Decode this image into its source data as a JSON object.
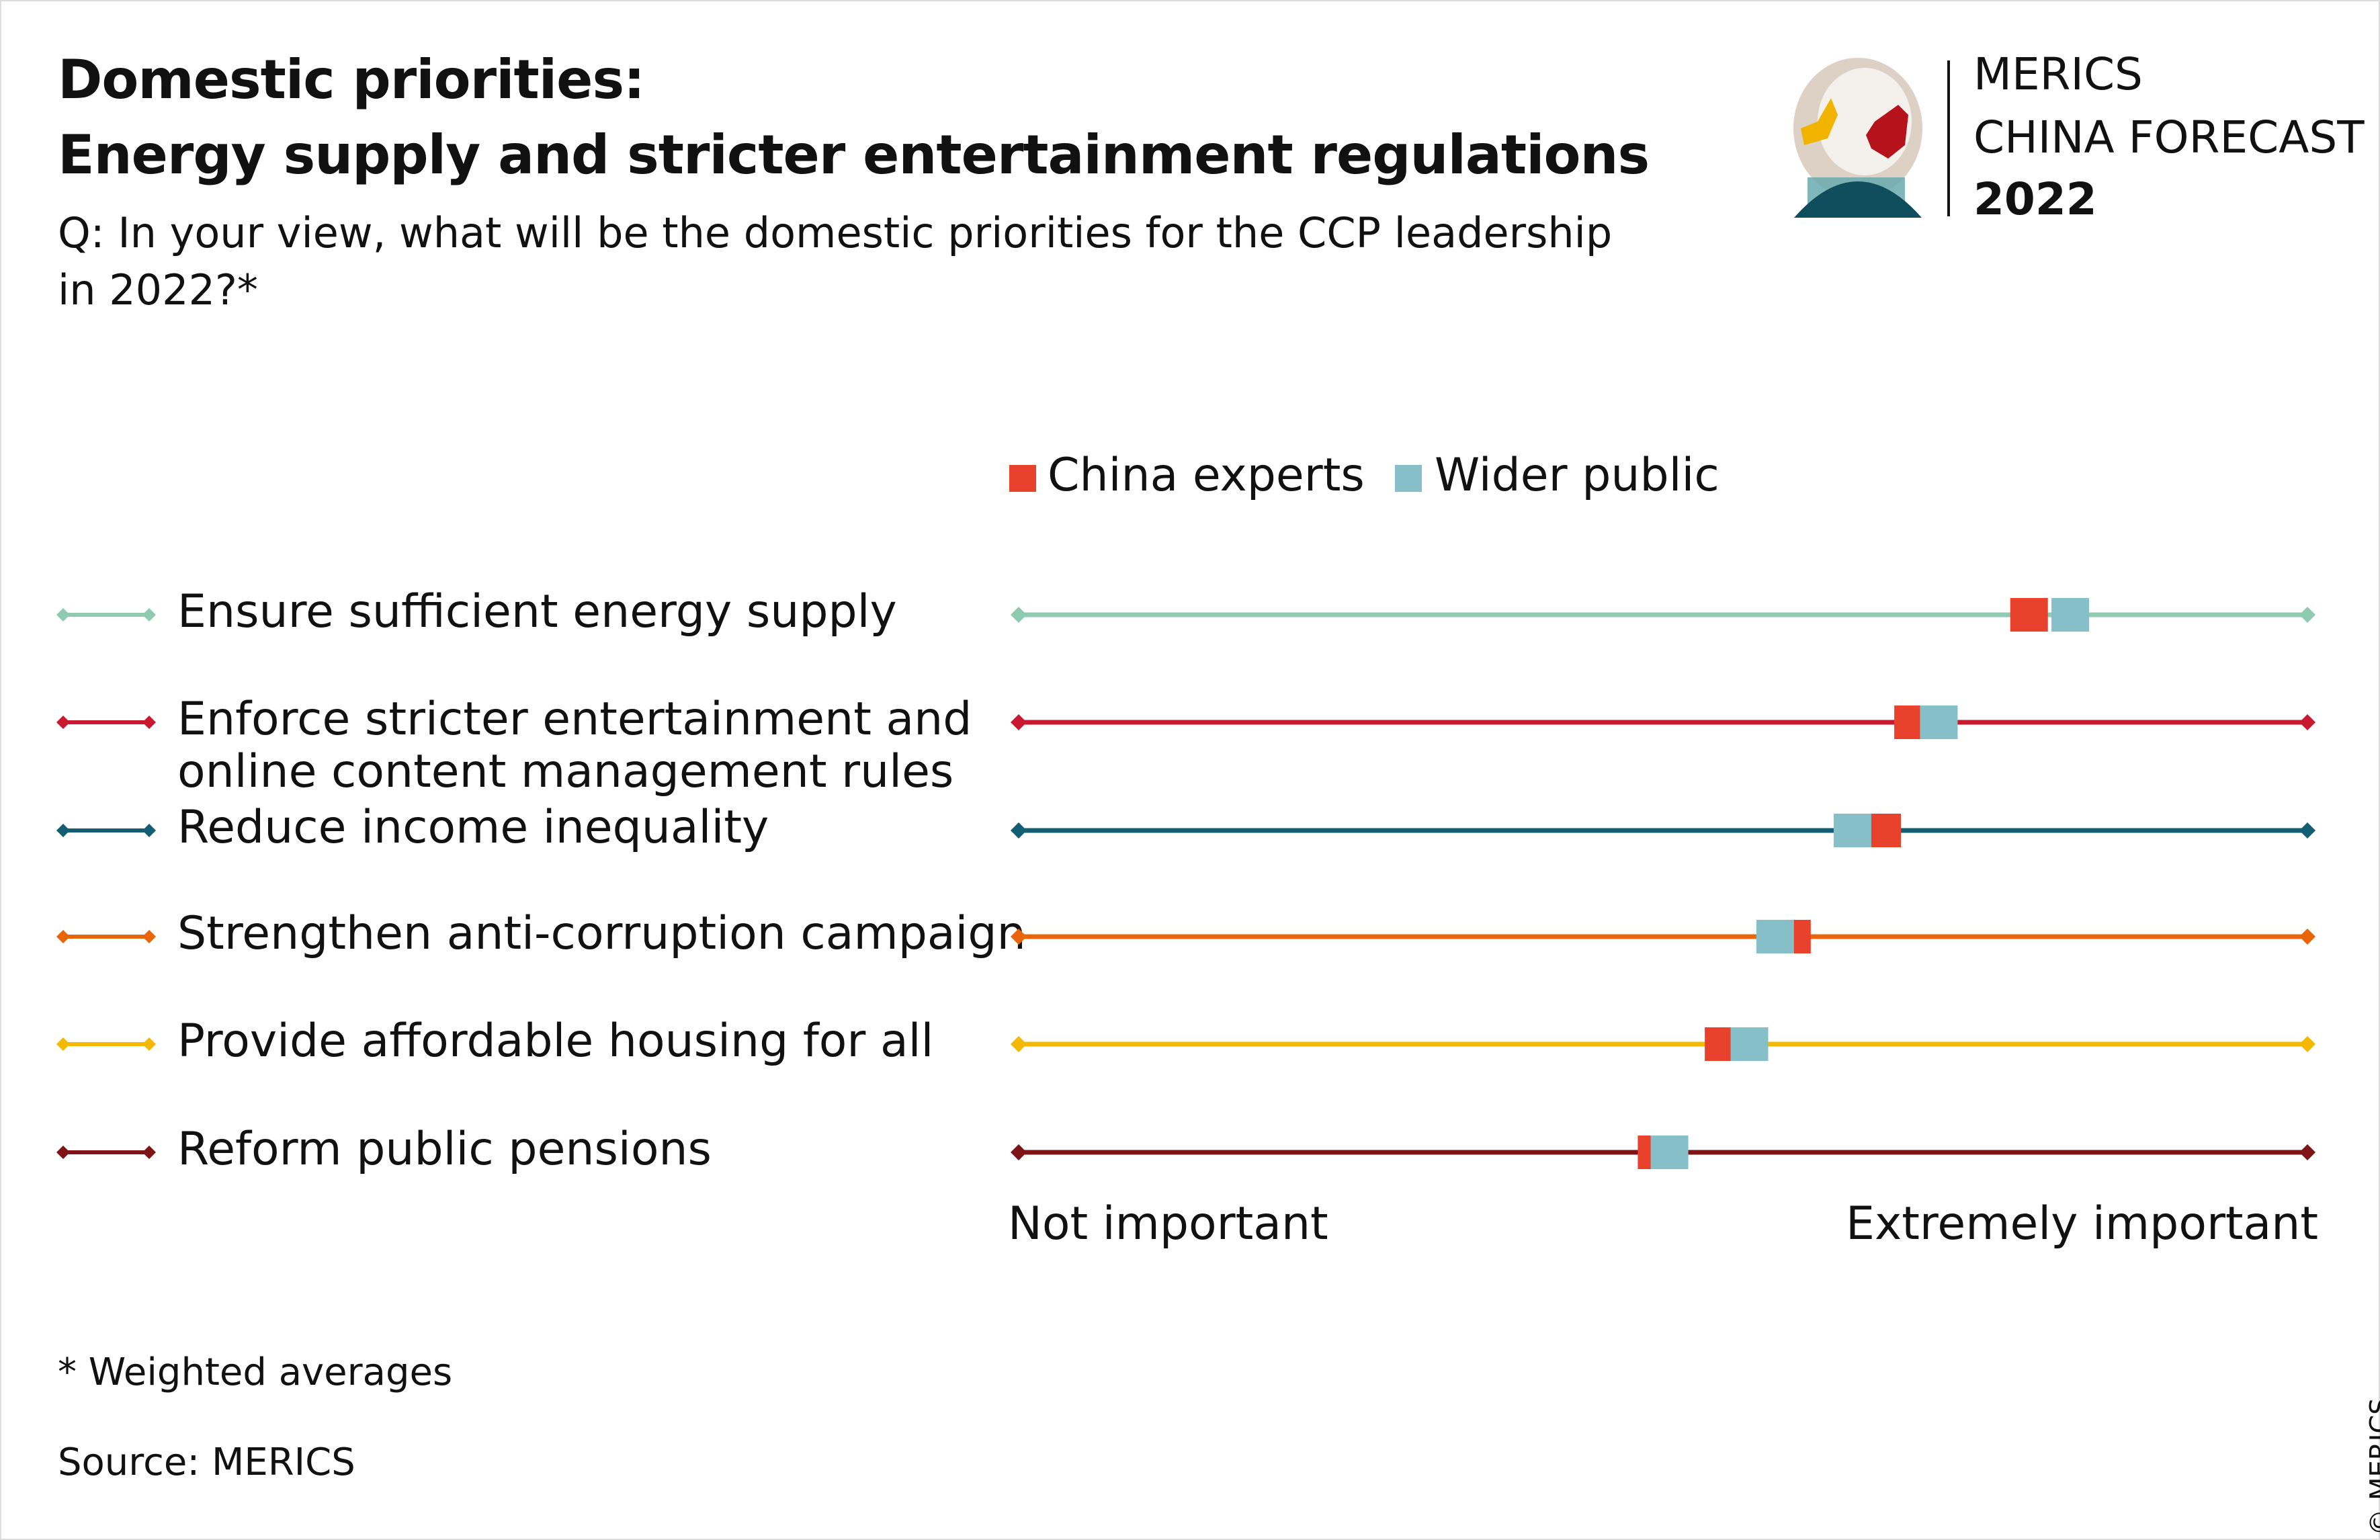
{
  "header": {
    "title_line1": "Domestic priorities:",
    "title_line2": "Energy supply and stricter entertainment regulations",
    "question_line1": "Q: In your view, what will be the domestic priorities for the CCP leadership",
    "question_line2": "in 2022?*"
  },
  "logo": {
    "line1": "MERICS",
    "line2": "CHINA FORECAST",
    "line3": "2022"
  },
  "footer": {
    "note": "* Weighted averages",
    "source": "Source: MERICS",
    "copyright": "© MERICS"
  },
  "chart_data": {
    "type": "dot",
    "title": "Domestic priorities: Energy supply and stricter entertainment regulations",
    "xlabel_min": "Not important",
    "xlabel_max": "Extremely important",
    "xlim": [
      0,
      1
    ],
    "legend": [
      {
        "name": "China experts",
        "color": "#e8412c"
      },
      {
        "name": "Wider public",
        "color": "#86bfc7"
      }
    ],
    "legend_position": "top",
    "categories": [
      {
        "label": "Ensure sufficient energy supply",
        "color": "#8fcbb0",
        "experts": 0.784,
        "public": 0.816
      },
      {
        "label": "Enforce stricter entertainment and online content management rules",
        "label_line1": "Enforce stricter entertainment and",
        "label_line2": "online content management rules",
        "color": "#c8192e",
        "experts": 0.694,
        "public": 0.714
      },
      {
        "label": "Reduce income inequality",
        "color": "#135e72",
        "experts": 0.67,
        "public": 0.647
      },
      {
        "label": "Strengthen anti-corruption campaign",
        "color": "#e8650a",
        "experts": 0.6,
        "public": 0.587
      },
      {
        "label": "Provide affordable housing for all",
        "color": "#f5b800",
        "experts": 0.547,
        "public": 0.567
      },
      {
        "label": "Reform public pensions",
        "color": "#7f1416",
        "experts": 0.495,
        "public": 0.505
      }
    ]
  }
}
